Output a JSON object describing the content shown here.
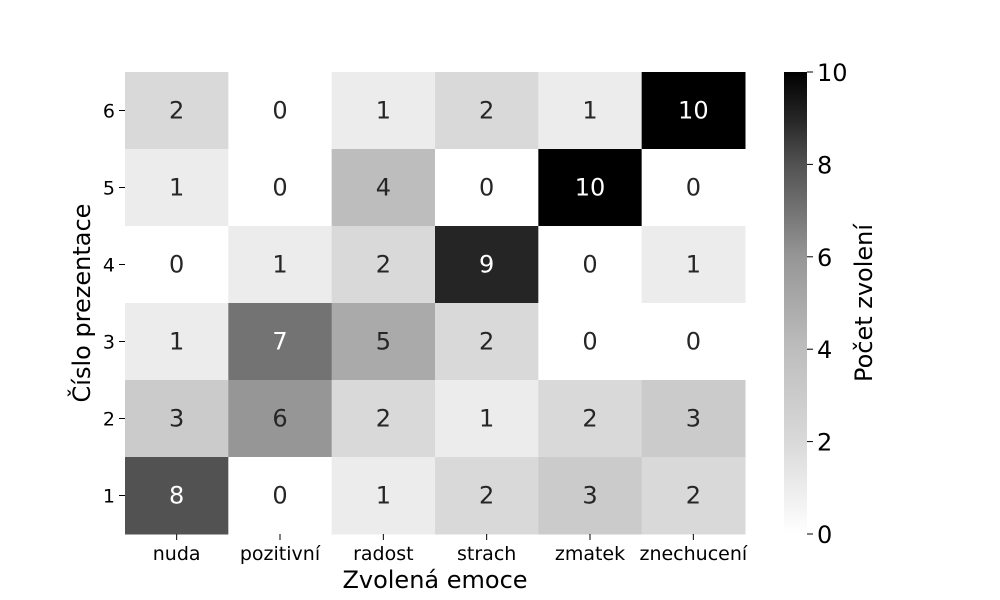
{
  "chart_data": {
    "type": "heatmap",
    "title": "",
    "xlabel": "Zvolená emoce",
    "ylabel": "Číslo prezentace",
    "x_categories": [
      "nuda",
      "pozitivní",
      "radost",
      "strach",
      "zmatek",
      "znechucení"
    ],
    "y_categories": [
      "6",
      "5",
      "4",
      "3",
      "2",
      "1"
    ],
    "values": [
      [
        2,
        0,
        1,
        2,
        1,
        10
      ],
      [
        1,
        0,
        4,
        0,
        10,
        0
      ],
      [
        0,
        1,
        2,
        9,
        0,
        1
      ],
      [
        1,
        7,
        5,
        2,
        0,
        0
      ],
      [
        3,
        6,
        2,
        1,
        2,
        3
      ],
      [
        8,
        0,
        1,
        2,
        3,
        2
      ]
    ],
    "colorbar": {
      "label": "Počet zvolení",
      "range": [
        0,
        10
      ],
      "ticks": [
        "0",
        "2",
        "4",
        "6",
        "8",
        "10"
      ],
      "colormap": "Greys",
      "low_color": "#ffffff",
      "high_color": "#000000"
    },
    "annotations": true,
    "grid": false
  }
}
